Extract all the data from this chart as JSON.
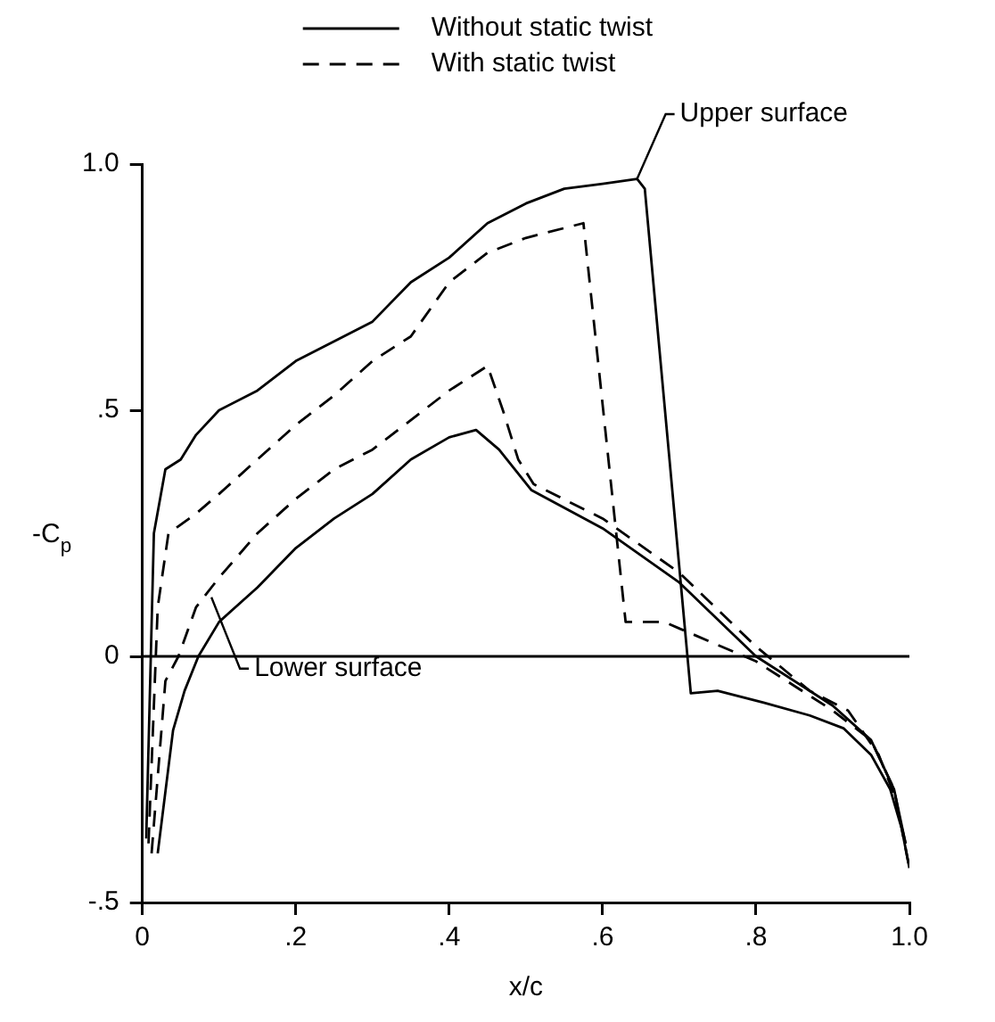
{
  "chart_data": {
    "type": "line",
    "xlabel": "x/c",
    "ylabel": "-C$_{p}$",
    "xlim": [
      0,
      1.0
    ],
    "ylim": [
      -0.5,
      1.0
    ],
    "xticks": [
      0,
      {
        "value": 0.2,
        "label": ".2"
      },
      {
        "value": 0.4,
        "label": ".4"
      },
      {
        "value": 0.6,
        "label": ".6"
      },
      {
        "value": 0.8,
        "label": ".8"
      },
      {
        "value": 1.0,
        "label": "1.0"
      }
    ],
    "yticks": [
      {
        "value": -0.5,
        "label": "-.5"
      },
      0,
      {
        "value": 0.5,
        "label": ".5"
      },
      {
        "value": 1.0,
        "label": "1.0"
      }
    ],
    "grid": false,
    "legend": "top",
    "marker": "none",
    "ref_lines": [
      {
        "axis": "y",
        "value": 0,
        "line_style": "solid",
        "color": "#000000"
      }
    ],
    "annotations": [
      {
        "text": "Upper surface",
        "x": 0.645,
        "y": 0.97
      },
      {
        "text": "Lower surface",
        "x": 0.09,
        "y": 0.12
      }
    ],
    "series": [
      {
        "name": "Without static twist",
        "color": "#000000",
        "line_style": "solid",
        "x": [
          0.005,
          0.015,
          0.03,
          0.05,
          0.07,
          0.1,
          0.15,
          0.2,
          0.25,
          0.3,
          0.35,
          0.4,
          0.45,
          0.5,
          0.55,
          0.6,
          0.645,
          0.655,
          0.715,
          0.75,
          0.81,
          0.87,
          0.914,
          0.95,
          0.975,
          0.99,
          1.0
        ],
        "values": [
          -0.37,
          0.25,
          0.38,
          0.4,
          0.45,
          0.5,
          0.54,
          0.6,
          0.64,
          0.68,
          0.76,
          0.81,
          0.88,
          0.92,
          0.95,
          0.96,
          0.97,
          0.95,
          -0.075,
          -0.07,
          -0.094,
          -0.12,
          -0.146,
          -0.2,
          -0.27,
          -0.35,
          -0.43
        ]
      },
      {
        "name": "With static twist",
        "color": "#000000",
        "line_style": "dashed",
        "x": [
          0.008,
          0.02,
          0.034,
          0.07,
          0.1,
          0.15,
          0.2,
          0.25,
          0.3,
          0.35,
          0.4,
          0.45,
          0.5,
          0.55,
          0.575,
          0.63,
          0.68,
          0.8,
          0.9,
          0.95,
          0.98,
          1.0
        ],
        "values": [
          -0.38,
          0.1,
          0.25,
          0.29,
          0.33,
          0.4,
          0.47,
          0.53,
          0.6,
          0.65,
          0.76,
          0.82,
          0.85,
          0.87,
          0.88,
          0.07,
          0.07,
          -0.01,
          -0.11,
          -0.17,
          -0.27,
          -0.43
        ]
      },
      {
        "color": "#000000",
        "line_style": "solid",
        "x": [
          0.02,
          0.04,
          0.055,
          0.073,
          0.1,
          0.15,
          0.2,
          0.25,
          0.3,
          0.35,
          0.4,
          0.435,
          0.465,
          0.507,
          0.6,
          0.7,
          0.8,
          0.9,
          0.95,
          0.98,
          0.995
        ],
        "values": [
          -0.4,
          -0.15,
          -0.07,
          0,
          0.07,
          0.14,
          0.22,
          0.28,
          0.33,
          0.4,
          0.445,
          0.46,
          0.42,
          0.338,
          0.26,
          0.15,
          0.0,
          -0.1,
          -0.17,
          -0.27,
          -0.38
        ]
      },
      {
        "color": "#000000",
        "line_style": "dashed",
        "x": [
          0.012,
          0.03,
          0.047,
          0.07,
          0.1,
          0.15,
          0.2,
          0.25,
          0.3,
          0.35,
          0.4,
          0.45,
          0.47,
          0.49,
          0.51,
          0.6,
          0.7,
          0.8,
          0.87,
          0.92,
          0.96,
          0.98,
          0.995
        ],
        "values": [
          -0.4,
          -0.05,
          0,
          0.1,
          0.16,
          0.25,
          0.32,
          0.38,
          0.42,
          0.48,
          0.54,
          0.59,
          0.5,
          0.4,
          0.35,
          0.28,
          0.17,
          0.02,
          -0.07,
          -0.11,
          -0.2,
          -0.28,
          -0.38
        ]
      }
    ]
  }
}
